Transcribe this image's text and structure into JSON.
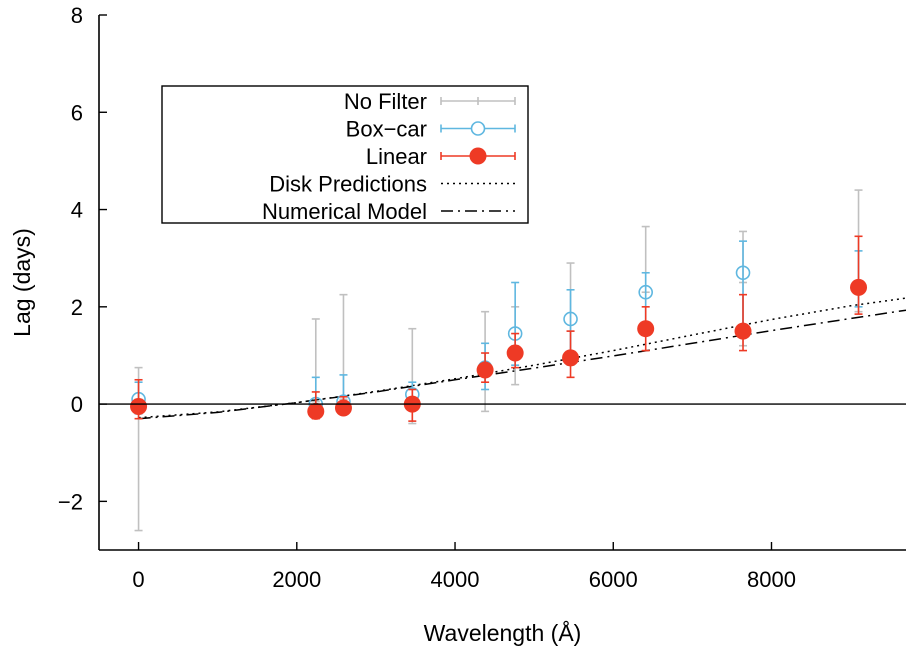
{
  "chart_data": {
    "type": "scatter",
    "title": "",
    "xlabel": "Wavelength (Å)",
    "ylabel": "Lag (days)",
    "xlim": [
      -500,
      9700
    ],
    "ylim": [
      -3,
      8
    ],
    "xticks": [
      0,
      2000,
      4000,
      6000,
      8000
    ],
    "yticks": [
      -2,
      0,
      2,
      4,
      6,
      8
    ],
    "xtick_labels": [
      "0",
      "2000",
      "4000",
      "6000",
      "8000"
    ],
    "ytick_labels": [
      "−2",
      "0",
      "2",
      "4",
      "6",
      "8"
    ],
    "zero_line": true,
    "grid": false,
    "legend_position": "top-left",
    "series": [
      {
        "name": "No Filter",
        "style": "errorbars",
        "color": "#c0c0c0",
        "points": [
          {
            "x": 0,
            "y": 0.1,
            "ylo": -2.6,
            "yhi": 0.75
          },
          {
            "x": 2240,
            "y": 0.05,
            "ylo": -0.05,
            "yhi": 1.75
          },
          {
            "x": 2590,
            "y": 0.1,
            "ylo": -0.05,
            "yhi": 2.25
          },
          {
            "x": 3460,
            "y": 0.0,
            "ylo": -0.4,
            "yhi": 1.55
          },
          {
            "x": 4380,
            "y": 0.7,
            "ylo": -0.15,
            "yhi": 1.9
          },
          {
            "x": 4760,
            "y": 1.2,
            "ylo": 0.4,
            "yhi": 2.0
          },
          {
            "x": 5460,
            "y": 1.5,
            "ylo": 0.8,
            "yhi": 2.9
          },
          {
            "x": 6410,
            "y": 2.3,
            "ylo": 1.45,
            "yhi": 3.65
          },
          {
            "x": 7640,
            "y": 2.5,
            "ylo": 1.2,
            "yhi": 3.55
          },
          {
            "x": 9100,
            "y": 2.4,
            "ylo": 1.9,
            "yhi": 4.4
          }
        ]
      },
      {
        "name": "Box−car",
        "style": "open-circle",
        "color": "#5fb7e0",
        "points": [
          {
            "x": 0,
            "y": 0.1,
            "ylo": -0.2,
            "yhi": 0.45
          },
          {
            "x": 2240,
            "y": 0.0,
            "ylo": -0.15,
            "yhi": 0.55
          },
          {
            "x": 2590,
            "y": 0.05,
            "ylo": -0.05,
            "yhi": 0.6
          },
          {
            "x": 3460,
            "y": 0.2,
            "ylo": -0.1,
            "yhi": 0.45
          },
          {
            "x": 4380,
            "y": 0.75,
            "ylo": 0.3,
            "yhi": 1.25
          },
          {
            "x": 4760,
            "y": 1.45,
            "ylo": 0.8,
            "yhi": 2.5
          },
          {
            "x": 5460,
            "y": 1.75,
            "ylo": 1.0,
            "yhi": 2.35
          },
          {
            "x": 6410,
            "y": 2.3,
            "ylo": 1.55,
            "yhi": 2.7
          },
          {
            "x": 7640,
            "y": 2.7,
            "ylo": 1.5,
            "yhi": 3.35
          },
          {
            "x": 9100,
            "y": 2.4,
            "ylo": 2.0,
            "yhi": 3.15
          }
        ]
      },
      {
        "name": "Linear",
        "style": "filled-circle",
        "color": "#ee3a25",
        "points": [
          {
            "x": 0,
            "y": -0.05,
            "ylo": -0.3,
            "yhi": 0.5
          },
          {
            "x": 2240,
            "y": -0.15,
            "ylo": -0.3,
            "yhi": 0.25
          },
          {
            "x": 2590,
            "y": -0.08,
            "ylo": -0.2,
            "yhi": 0.15
          },
          {
            "x": 3460,
            "y": 0.0,
            "ylo": -0.35,
            "yhi": 0.3
          },
          {
            "x": 4380,
            "y": 0.7,
            "ylo": 0.45,
            "yhi": 1.05
          },
          {
            "x": 4760,
            "y": 1.05,
            "ylo": 0.75,
            "yhi": 1.45
          },
          {
            "x": 5460,
            "y": 0.95,
            "ylo": 0.55,
            "yhi": 1.5
          },
          {
            "x": 6410,
            "y": 1.55,
            "ylo": 1.1,
            "yhi": 2.0
          },
          {
            "x": 7640,
            "y": 1.5,
            "ylo": 1.1,
            "yhi": 2.25
          },
          {
            "x": 9100,
            "y": 2.4,
            "ylo": 1.85,
            "yhi": 3.45
          }
        ]
      },
      {
        "name": "Disk Predictions",
        "style": "dotted-line",
        "color": "#000000",
        "x": [
          0,
          1000,
          2000,
          3000,
          4000,
          5000,
          6000,
          7000,
          8000,
          9000,
          9700
        ],
        "y": [
          -0.28,
          -0.16,
          0.03,
          0.26,
          0.52,
          0.8,
          1.1,
          1.42,
          1.74,
          2.02,
          2.18
        ]
      },
      {
        "name": "Numerical Model",
        "style": "dash-dot-line",
        "color": "#000000",
        "x": [
          0,
          1000,
          2000,
          3000,
          4000,
          5000,
          6000,
          7000,
          8000,
          9000,
          9700
        ],
        "y": [
          -0.3,
          -0.17,
          0.03,
          0.25,
          0.5,
          0.74,
          0.99,
          1.25,
          1.51,
          1.76,
          1.93
        ]
      }
    ]
  },
  "legend": {
    "entries": [
      "No Filter",
      "Box−car",
      "Linear",
      "Disk Predictions",
      "Numerical Model"
    ]
  }
}
